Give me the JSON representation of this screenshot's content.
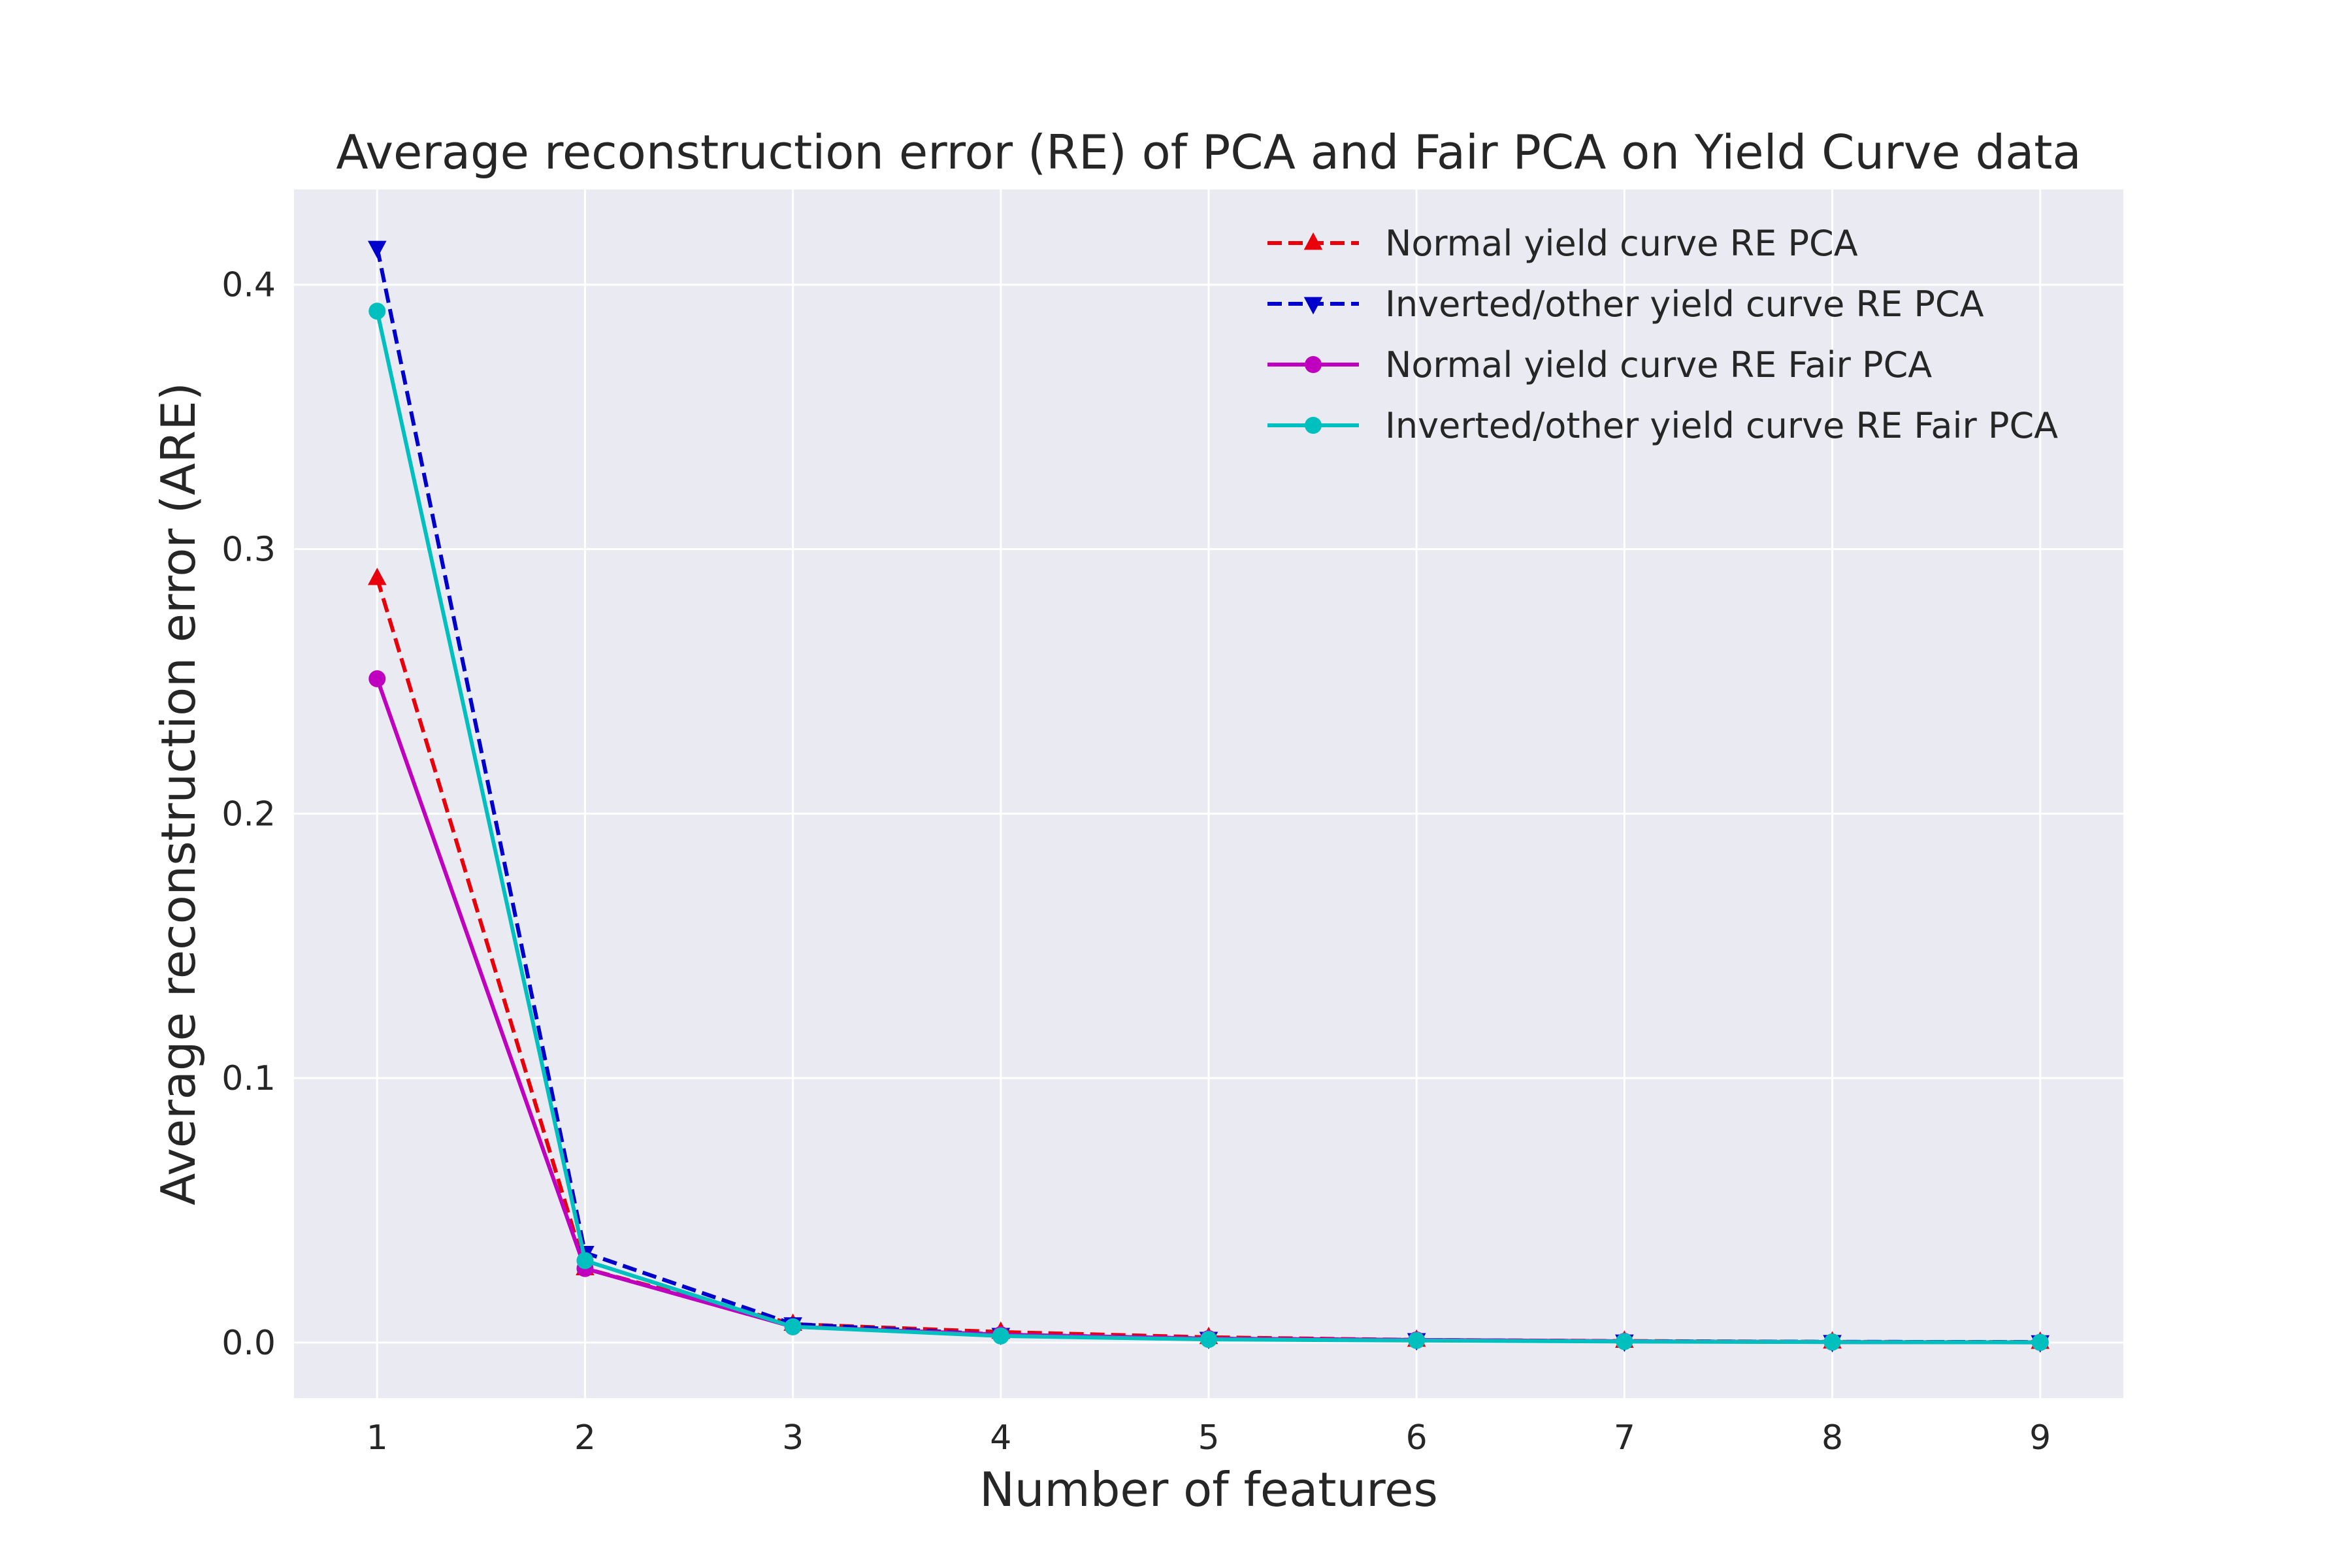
{
  "chart_data": {
    "type": "line",
    "title": "Average reconstruction error (RE) of PCA and Fair PCA on Yield Curve data",
    "xlabel": "Number of features",
    "ylabel": "Average reconstruction error (ARE)",
    "x": [
      1,
      2,
      3,
      4,
      5,
      6,
      7,
      8,
      9
    ],
    "xlim": [
      0.6,
      9.4
    ],
    "ylim": [
      -0.021,
      0.436
    ],
    "xticks": [
      "1",
      "2",
      "3",
      "4",
      "5",
      "6",
      "7",
      "8",
      "9"
    ],
    "yticks": [
      {
        "value": 0.0,
        "label": "0.0"
      },
      {
        "value": 0.1,
        "label": "0.1"
      },
      {
        "value": 0.2,
        "label": "0.2"
      },
      {
        "value": 0.3,
        "label": "0.3"
      },
      {
        "value": 0.4,
        "label": "0.4"
      }
    ],
    "grid": true,
    "legend_position": "top-right",
    "background": "#eaeaf2",
    "series": [
      {
        "name": "Normal yield curve RE PCA",
        "color": "#e8000b",
        "dash": "dashed",
        "marker": "triangle-up",
        "values": [
          0.289,
          0.028,
          0.007,
          0.004,
          0.002,
          0.001,
          0.0006,
          0.0003,
          0.0002
        ]
      },
      {
        "name": "Inverted/other yield curve RE PCA",
        "color": "#0000cc",
        "dash": "dashed",
        "marker": "triangle-down",
        "values": [
          0.414,
          0.034,
          0.007,
          0.003,
          0.0015,
          0.001,
          0.0005,
          0.0003,
          0.0002
        ]
      },
      {
        "name": "Normal yield curve RE Fair PCA",
        "color": "#bf00bf",
        "dash": "solid",
        "marker": "circle",
        "values": [
          0.251,
          0.028,
          0.006,
          0.003,
          0.0015,
          0.001,
          0.0005,
          0.0002,
          0.0001
        ]
      },
      {
        "name": "Inverted/other yield curve RE Fair PCA",
        "color": "#00bfbf",
        "dash": "solid",
        "marker": "circle",
        "values": [
          0.39,
          0.031,
          0.006,
          0.0025,
          0.0012,
          0.0008,
          0.0004,
          0.0002,
          0.0001
        ]
      }
    ]
  }
}
